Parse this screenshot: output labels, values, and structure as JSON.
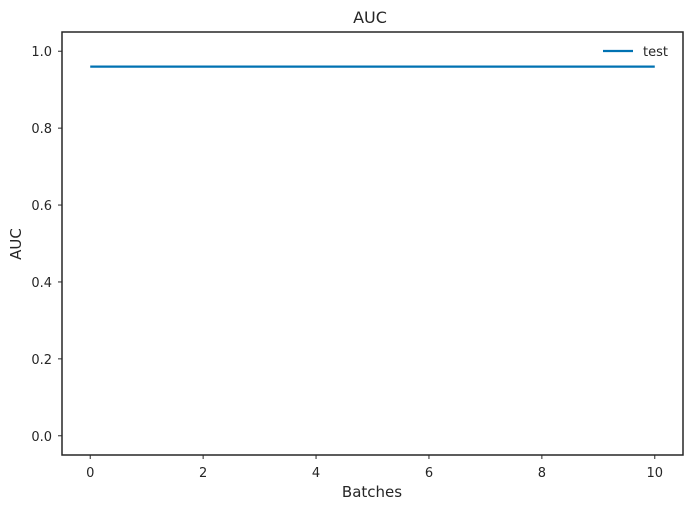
{
  "chart_data": {
    "type": "line",
    "title": "AUC",
    "xlabel": "Batches",
    "ylabel": "AUC",
    "xlim": [
      -0.5,
      10.5
    ],
    "ylim": [
      -0.05,
      1.05
    ],
    "xticks": [
      0,
      2,
      4,
      6,
      8,
      10
    ],
    "yticks": [
      0.0,
      0.2,
      0.4,
      0.6,
      0.8,
      1.0
    ],
    "xtick_labels": [
      "0",
      "2",
      "4",
      "6",
      "8",
      "10"
    ],
    "ytick_labels": [
      "0.0",
      "0.2",
      "0.4",
      "0.6",
      "0.8",
      "1.0"
    ],
    "grid": false,
    "legend_position": "top-right",
    "series": [
      {
        "name": "test",
        "color": "#0072b2",
        "x": [
          0,
          10
        ],
        "y": [
          0.96,
          0.96
        ]
      }
    ]
  }
}
